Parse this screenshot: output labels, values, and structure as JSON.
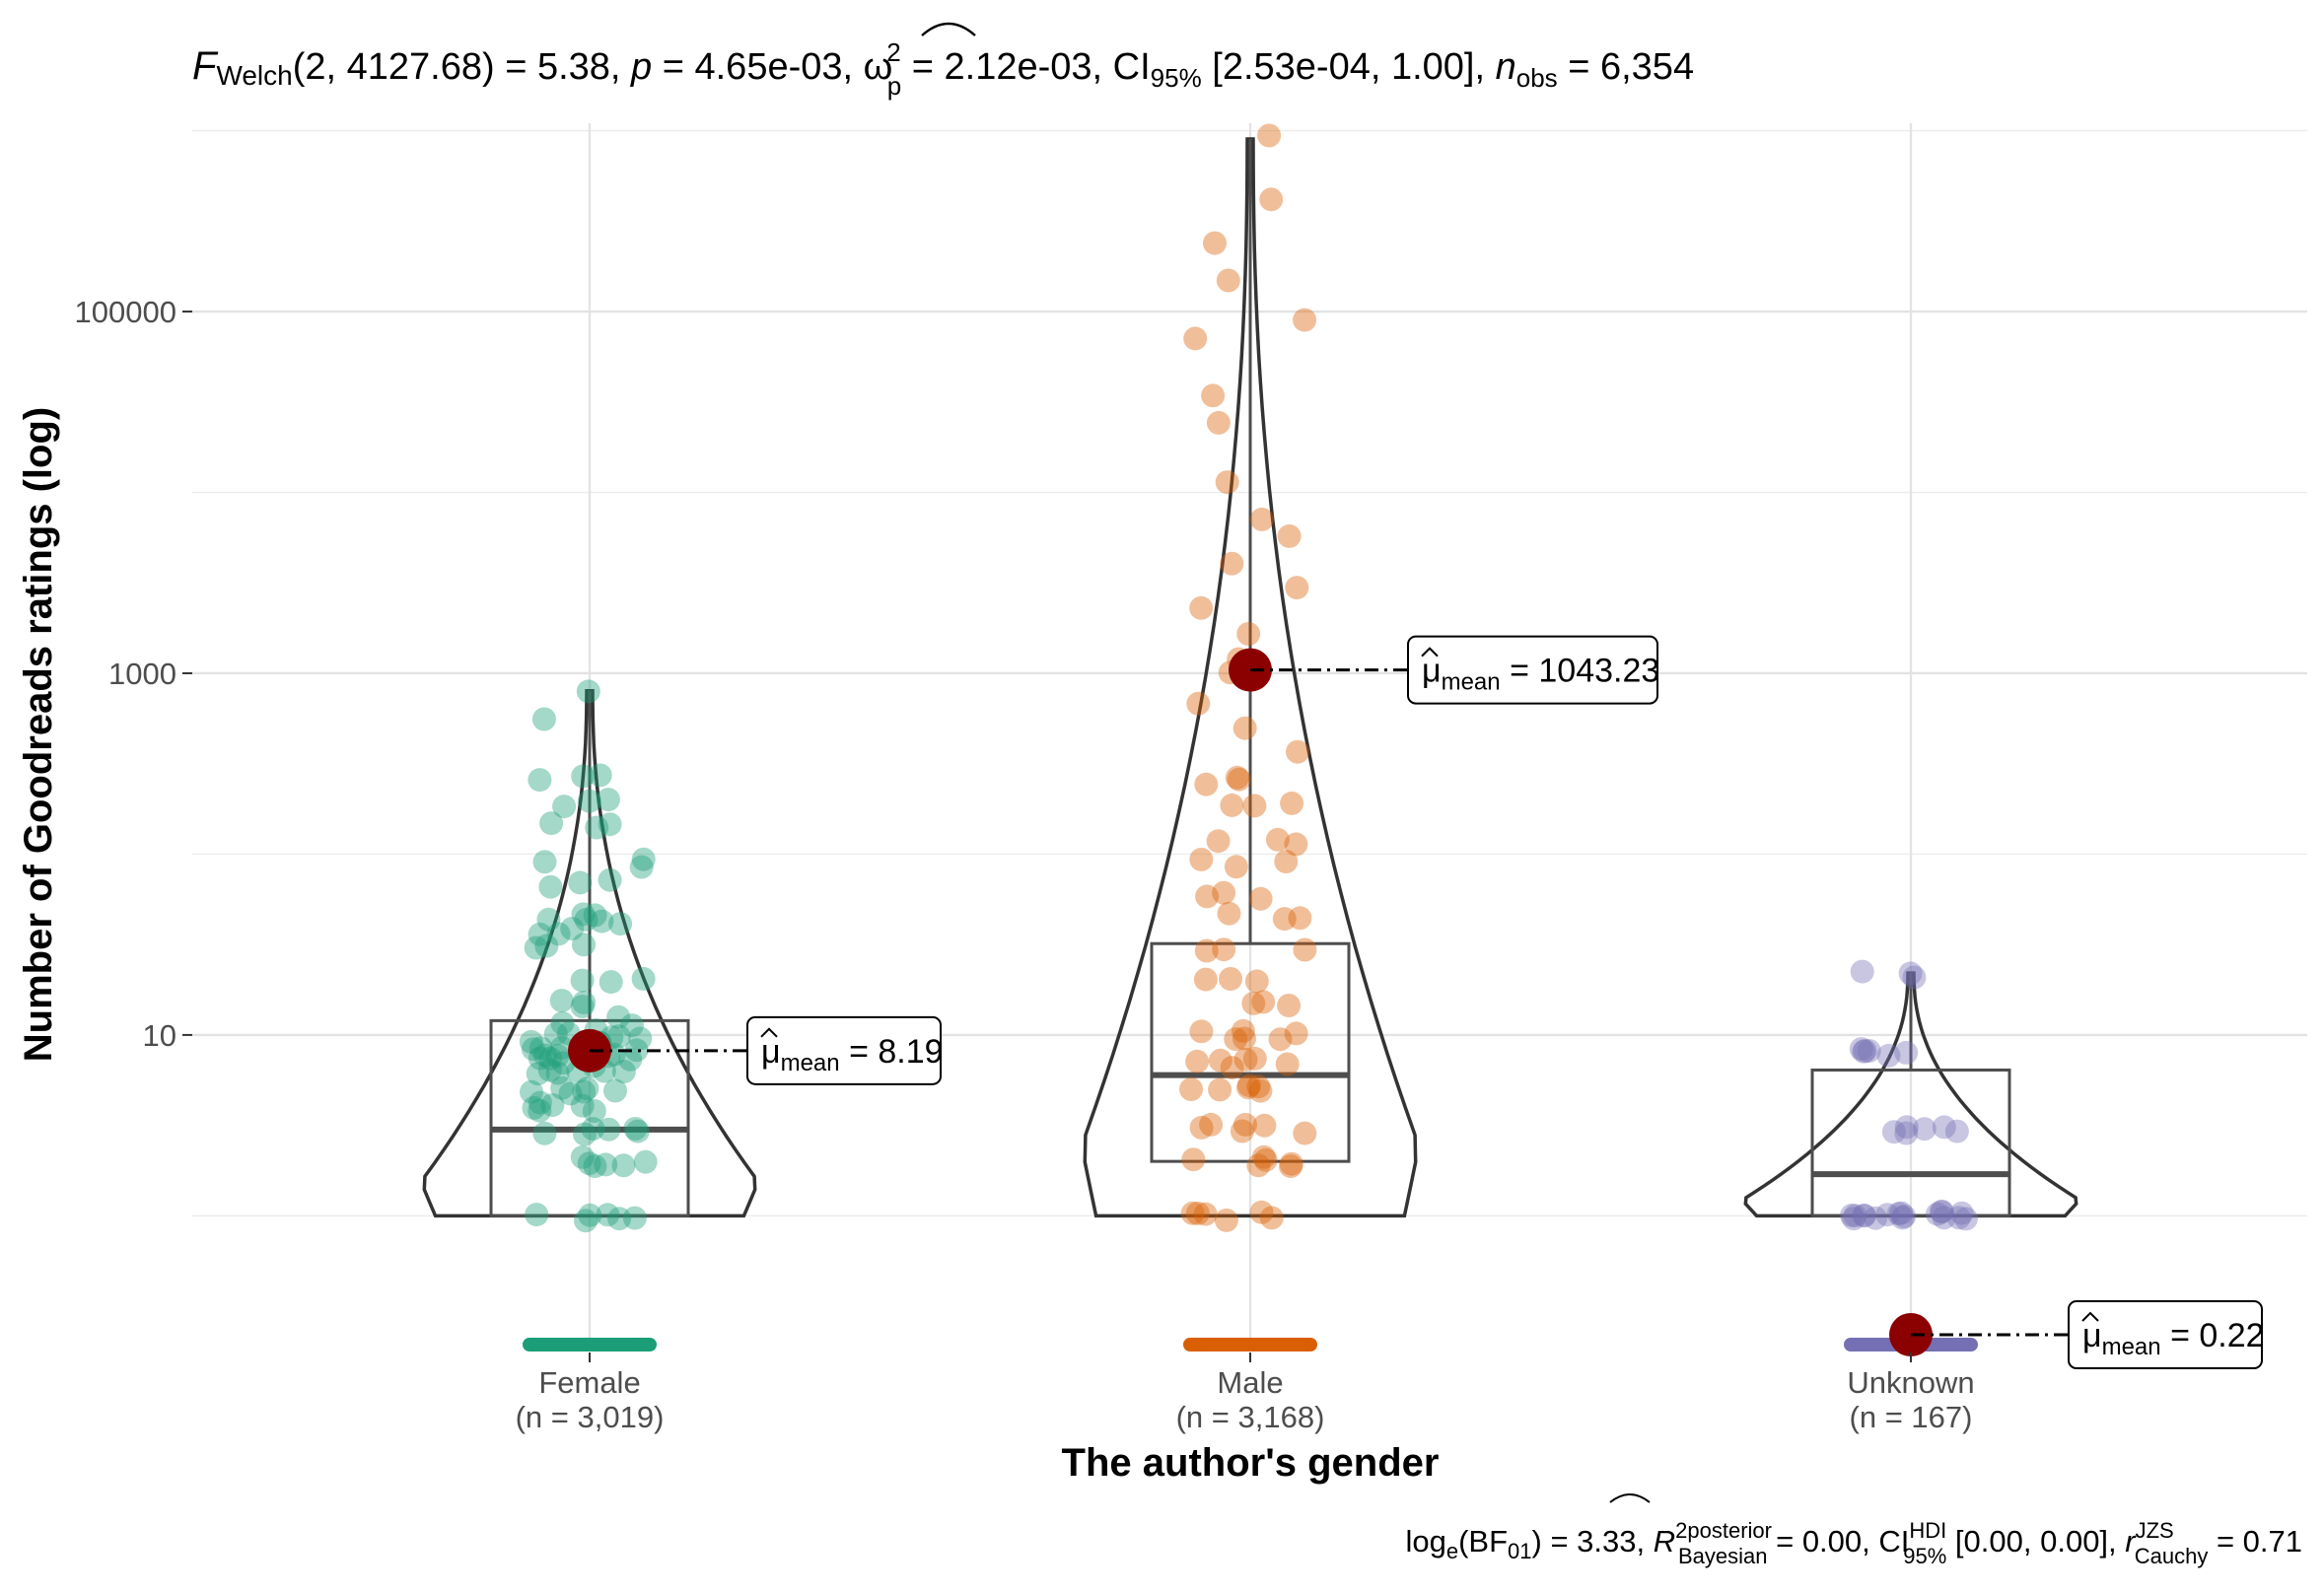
{
  "chart_data": {
    "type": "violin-box-scatter",
    "subtitle_text": {
      "F": "F",
      "welch": "Welch",
      "df": "(2, 4127.68)",
      "stat": " = 5.38, ",
      "p": "p",
      "p_val": " = 4.65e-03, ",
      "omega": "ω",
      "omega_sup": "2",
      "omega_sub": "p",
      "omega_val": " = 2.12e-03, CI",
      "ci_sub": "95%",
      "ci_val": " [2.53e-04, 1.00], ",
      "n": "n",
      "n_sub": "obs",
      "n_val": " = 6,354"
    },
    "caption_text": {
      "log": "log",
      "log_sub": "e",
      "bf_open": "(BF",
      "bf_sub": "01",
      "bf_val": ") = 3.33, ",
      "R": "R",
      "R_sup1": "2",
      "R_sup2": "posterior",
      "R_sub": "Bayesian",
      "R_val": " = 0.00, CI",
      "ci_sup": "HDI",
      "ci_sub": "95%",
      "ci_val": " [0.00, 0.00], ",
      "r": "r",
      "r_sup": "JZS",
      "r_sub": "Cauchy",
      "r_val": " = 0.71"
    },
    "xlabel": "The author's gender",
    "ylabel": "Number of Goodreads ratings (log)",
    "y_scale": "log10",
    "ylim": [
      0.18,
      1100000
    ],
    "y_ticks": [
      10,
      1000,
      100000
    ],
    "y_tick_labels": [
      "10",
      "1000",
      "100000"
    ],
    "grid": true,
    "mean_label_prefix": "μ",
    "mean_label_sub": "mean",
    "categories": [
      {
        "name": "Female",
        "n_label": "(n = 3,019)",
        "color": "#1b9e77",
        "mean": 8.19,
        "mean_label_value": "8.19",
        "box": {
          "q1": 1,
          "median": 3,
          "q3": 12,
          "whisker_low": 1,
          "whisker_high": 800
        },
        "violin_max": 800,
        "points": [
          800,
          540,
          270,
          190,
          140,
          90,
          70,
          45,
          38,
          42,
          30,
          20,
          15,
          12,
          10,
          9,
          8,
          7,
          6,
          5,
          4,
          3,
          2,
          1
        ]
      },
      {
        "name": "Male",
        "n_label": "(n = 3,168)",
        "color": "#d95f02",
        "mean": 1043.23,
        "mean_label_value": "1043.23",
        "box": {
          "q1": 2,
          "median": 6,
          "q3": 32,
          "whisker_low": 1,
          "whisker_high": 900000
        },
        "violin_max": 900000,
        "points": [
          900000,
          400000,
          240000,
          140000,
          90000,
          70000,
          35000,
          25000,
          12000,
          7000,
          5500,
          4000,
          3000,
          2200,
          1600,
          1200,
          950,
          700,
          500,
          350,
          250,
          180,
          120,
          90,
          60,
          45,
          30,
          20,
          15,
          10,
          7,
          5,
          3,
          2,
          1
        ]
      },
      {
        "name": "Unknown",
        "n_label": "(n = 167)",
        "color": "#7570b3",
        "mean": 0.22,
        "mean_label_value": "0.22",
        "box": {
          "q1": 1,
          "median": 1.7,
          "q3": 6.4,
          "whisker_low": 1,
          "whisker_high": 22
        },
        "violin_max": 22,
        "points": [
          22,
          8,
          3,
          1,
          1,
          1
        ]
      }
    ]
  }
}
